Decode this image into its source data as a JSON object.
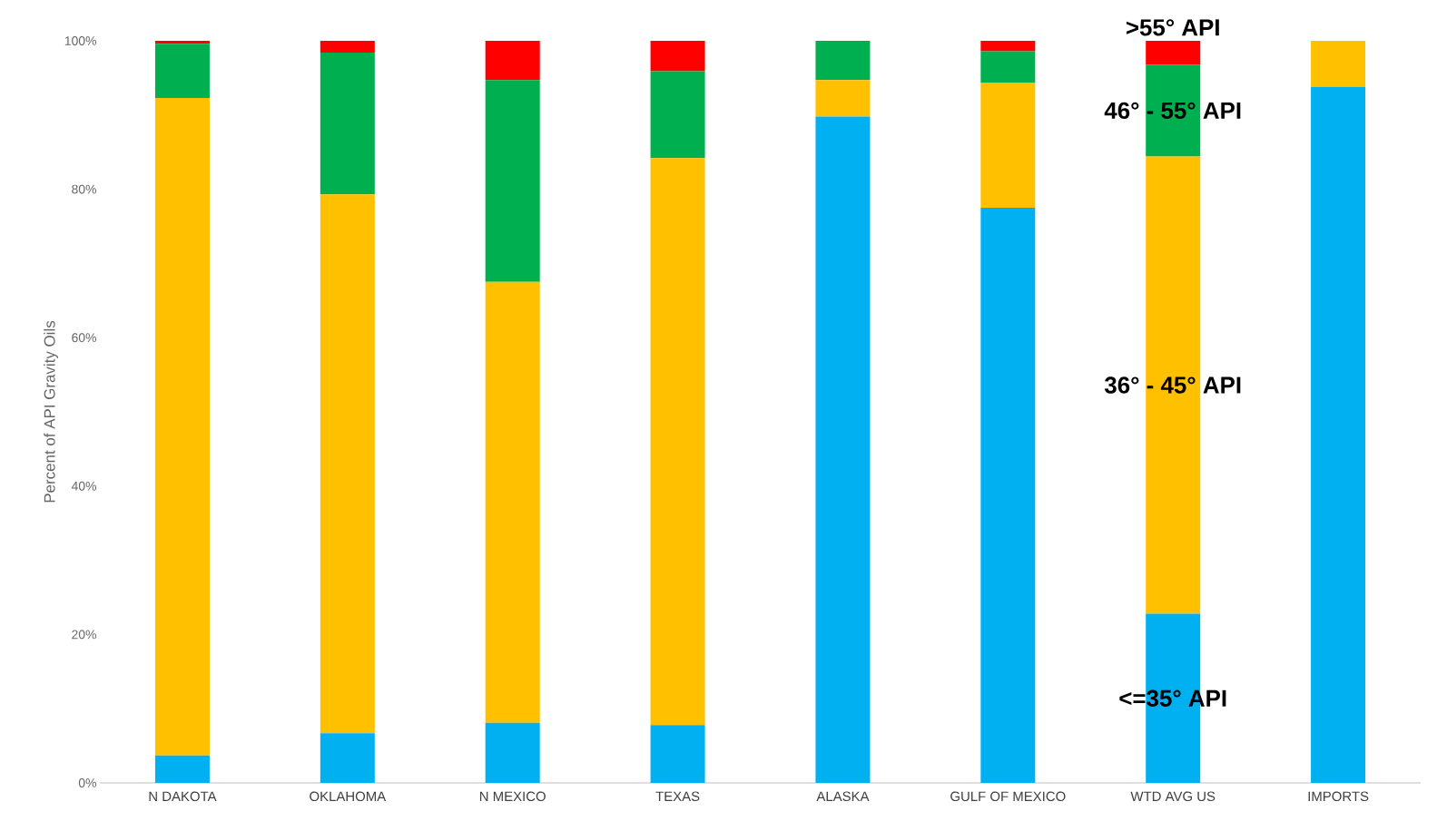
{
  "chart_data": {
    "type": "bar",
    "stacked": true,
    "ylabel": "Percent of API Gravity Oils",
    "categories": [
      "N DAKOTA",
      "OKLAHOMA",
      "N MEXICO",
      "TEXAS",
      "ALASKA",
      "GULF OF MEXICO",
      "WTD AVG US",
      "IMPORTS"
    ],
    "series": [
      {
        "name": "<=35° API",
        "color": "#00b0f0",
        "values": [
          3.7,
          6.7,
          8.1,
          7.8,
          89.8,
          77.5,
          22.8,
          93.8
        ]
      },
      {
        "name": "36° - 45° API",
        "color": "#ffc000",
        "values": [
          88.6,
          72.6,
          59.4,
          76.4,
          4.9,
          16.8,
          61.6,
          6.2
        ]
      },
      {
        "name": "46° - 55° API",
        "color": "#00b050",
        "values": [
          7.3,
          19.1,
          27.2,
          11.7,
          5.3,
          4.3,
          12.4,
          0
        ]
      },
      {
        "name": ">55° API",
        "color": "#ff0000",
        "values": [
          0.4,
          1.6,
          5.3,
          4.1,
          0,
          1.4,
          3.2,
          0
        ]
      }
    ],
    "ylim": [
      0,
      100
    ],
    "yticks": [
      {
        "value": 0,
        "label": "0%"
      },
      {
        "value": 20,
        "label": "20%"
      },
      {
        "value": 40,
        "label": "40%"
      },
      {
        "value": 60,
        "label": "60%"
      },
      {
        "value": 80,
        "label": "80%"
      },
      {
        "value": 100,
        "label": "100%"
      }
    ],
    "grid": false
  }
}
